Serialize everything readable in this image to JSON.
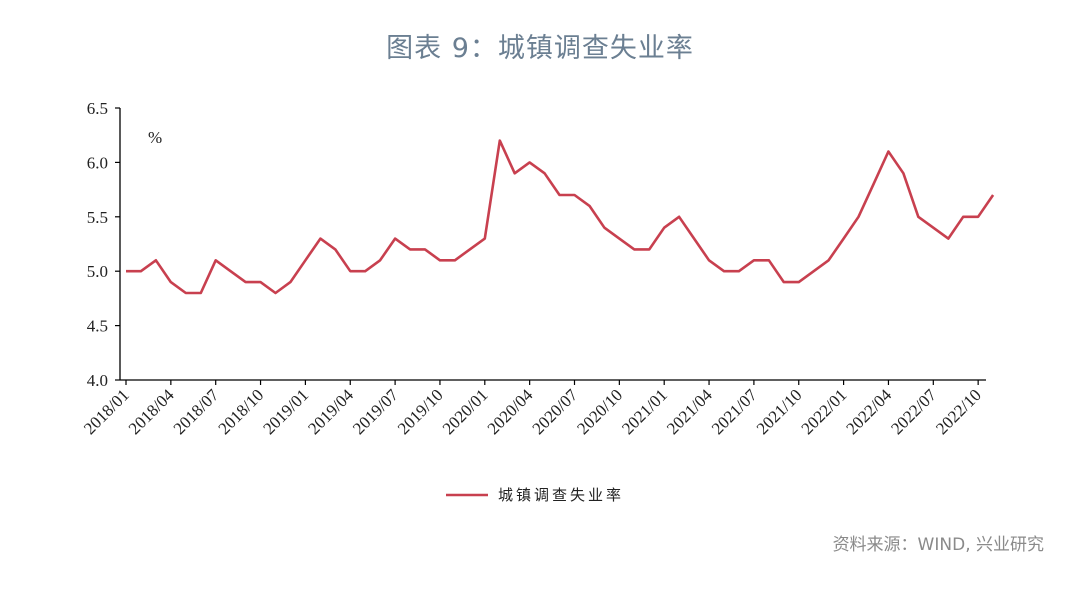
{
  "title": "图表 9：城镇调查失业率",
  "source": "资料来源：WIND, 兴业研究",
  "colors": {
    "series": "#c8404f",
    "axis": "#000000"
  },
  "chart_data": {
    "type": "line",
    "unit_label": "%",
    "ylim": [
      4.0,
      6.5
    ],
    "y_ticks": [
      "4.0",
      "4.5",
      "5.0",
      "5.5",
      "6.0",
      "6.5"
    ],
    "x_tick_labels": [
      "2018/01",
      "2018/04",
      "2018/07",
      "2018/10",
      "2019/01",
      "2019/04",
      "2019/07",
      "2019/10",
      "2020/01",
      "2020/04",
      "2020/07",
      "2020/10",
      "2021/01",
      "2021/04",
      "2021/07",
      "2021/10",
      "2022/01",
      "2022/04",
      "2022/07",
      "2022/10"
    ],
    "grid": false,
    "legend_position": "bottom",
    "series": [
      {
        "name": "城镇调查失业率",
        "values": [
          5.0,
          5.0,
          5.1,
          4.9,
          4.8,
          4.8,
          5.1,
          5.0,
          4.9,
          4.9,
          4.8,
          4.9,
          5.1,
          5.3,
          5.2,
          5.0,
          5.0,
          5.1,
          5.3,
          5.2,
          5.2,
          5.1,
          5.1,
          5.2,
          5.3,
          6.2,
          5.9,
          6.0,
          5.9,
          5.7,
          5.7,
          5.6,
          5.4,
          5.3,
          5.2,
          5.2,
          5.4,
          5.5,
          5.3,
          5.1,
          5.0,
          5.0,
          5.1,
          5.1,
          4.9,
          4.9,
          5.0,
          5.1,
          5.3,
          5.5,
          5.8,
          6.1,
          5.9,
          5.5,
          5.4,
          5.3,
          5.5,
          5.5,
          5.7
        ]
      }
    ]
  }
}
